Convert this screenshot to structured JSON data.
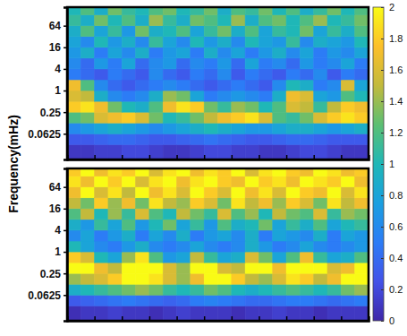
{
  "chart_data": [
    {
      "type": "heatmap",
      "ylabel": "Frequency(mHz)",
      "log": "y",
      "tick_labels": "y",
      "xlim": [
        0,
        11
      ],
      "xticks": [
        1,
        2,
        3,
        4,
        5,
        6,
        7,
        8,
        9,
        10
      ],
      "ylim": [
        0.012,
        210
      ],
      "yticks": [
        0.0625,
        0.25,
        1,
        4,
        16,
        64
      ],
      "x_edges": [
        0,
        0.5,
        1,
        1.5,
        2,
        2.5,
        3,
        3.5,
        4,
        4.5,
        5,
        5.5,
        6,
        6.5,
        7,
        7.5,
        8,
        8.5,
        9,
        9.5,
        10,
        10.5,
        11
      ],
      "y_edges": [
        0.012,
        0.03125,
        0.0625,
        0.125,
        0.25,
        0.5,
        1,
        2,
        4,
        8,
        16,
        32,
        64,
        128,
        210
      ],
      "z": [
        [
          0.1,
          0.1,
          0.15,
          0.15,
          0.2,
          0.2,
          0.15,
          0.1,
          0.1,
          0.15,
          0.2,
          0.2,
          0.15,
          0.15,
          0.1,
          0.1,
          0.15,
          0.2,
          0.2,
          0.15,
          0.1,
          0.1
        ],
        [
          0.3,
          0.3,
          0.35,
          0.4,
          0.4,
          0.35,
          0.3,
          0.3,
          0.35,
          0.4,
          0.45,
          0.4,
          0.35,
          0.3,
          0.3,
          0.35,
          0.4,
          0.4,
          0.35,
          0.3,
          0.3,
          0.3
        ],
        [
          0.6,
          0.7,
          0.8,
          0.9,
          0.8,
          0.7,
          0.6,
          0.7,
          0.8,
          0.9,
          1.0,
          0.9,
          0.8,
          0.7,
          0.7,
          0.8,
          0.9,
          0.9,
          0.8,
          0.7,
          0.8,
          0.9
        ],
        [
          1.2,
          1.3,
          1.6,
          1.7,
          1.8,
          1.6,
          1.3,
          1.0,
          1.1,
          1.3,
          1.5,
          1.7,
          1.8,
          1.9,
          1.6,
          1.2,
          1.1,
          1.3,
          1.6,
          1.8,
          1.9,
          1.8
        ],
        [
          1.8,
          1.9,
          1.7,
          1.3,
          1.0,
          0.9,
          1.2,
          1.7,
          1.9,
          1.8,
          1.3,
          1.1,
          1.4,
          1.3,
          1.0,
          1.2,
          1.6,
          1.5,
          1.1,
          1.5,
          1.8,
          1.7
        ],
        [
          1.6,
          1.5,
          0.9,
          0.6,
          0.5,
          0.6,
          0.9,
          1.4,
          1.3,
          0.8,
          0.5,
          0.6,
          0.7,
          0.6,
          0.5,
          0.9,
          1.7,
          1.6,
          0.8,
          0.7,
          1.2,
          1.0
        ],
        [
          1.7,
          1.2,
          0.6,
          0.4,
          0.3,
          0.4,
          0.5,
          0.6,
          0.5,
          0.4,
          0.3,
          0.4,
          0.5,
          0.4,
          0.3,
          0.6,
          1.0,
          0.9,
          0.5,
          0.6,
          1.6,
          0.8
        ],
        [
          0.5,
          0.4,
          0.3,
          0.5,
          0.4,
          0.3,
          0.6,
          0.4,
          0.3,
          0.5,
          0.4,
          0.6,
          0.3,
          0.5,
          0.4,
          0.3,
          0.5,
          0.4,
          0.6,
          0.3,
          0.5,
          0.4
        ],
        [
          0.6,
          0.4,
          0.7,
          0.5,
          0.8,
          0.4,
          0.6,
          0.7,
          0.4,
          0.6,
          0.5,
          0.7,
          0.4,
          0.8,
          0.5,
          0.6,
          0.4,
          0.7,
          0.5,
          0.6,
          0.8,
          0.5
        ],
        [
          0.7,
          0.9,
          0.5,
          0.8,
          0.6,
          0.9,
          0.5,
          0.7,
          0.8,
          0.5,
          0.9,
          0.6,
          0.8,
          0.5,
          0.7,
          0.9,
          0.6,
          0.8,
          0.5,
          0.7,
          0.6,
          0.8
        ],
        [
          0.8,
          0.6,
          1.0,
          0.7,
          0.9,
          0.6,
          1.1,
          0.8,
          0.6,
          1.0,
          0.7,
          0.9,
          0.6,
          1.0,
          0.8,
          0.7,
          1.1,
          0.6,
          0.9,
          0.8,
          0.7,
          1.0
        ],
        [
          0.9,
          1.2,
          0.8,
          1.1,
          0.7,
          1.3,
          0.9,
          1.0,
          1.2,
          0.8,
          1.1,
          1.3,
          0.9,
          1.2,
          0.8,
          1.1,
          1.0,
          1.3,
          0.8,
          1.1,
          0.9,
          1.2
        ],
        [
          1.1,
          0.9,
          1.3,
          1.0,
          1.2,
          0.9,
          1.4,
          1.1,
          0.9,
          1.3,
          1.2,
          1.0,
          1.4,
          0.9,
          1.2,
          1.3,
          1.0,
          1.2,
          1.4,
          1.0,
          1.1,
          1.3
        ],
        [
          1.0,
          1.2,
          0.9,
          1.3,
          1.1,
          1.0,
          1.2,
          1.3,
          1.0,
          1.1,
          1.3,
          0.9,
          1.2,
          1.1,
          1.3,
          1.0,
          1.2,
          0.9,
          1.1,
          1.3,
          1.0,
          1.2
        ]
      ],
      "colorbar": {
        "lim": [
          0,
          2
        ],
        "ticks": [
          0,
          0.2,
          0.4,
          0.6,
          0.8,
          1,
          1.2,
          1.4,
          1.6,
          1.8,
          2
        ]
      }
    },
    {
      "type": "heatmap",
      "log": "y",
      "tick_labels": "y",
      "xlim": [
        0,
        11
      ],
      "xticks": [
        1,
        2,
        3,
        4,
        5,
        6,
        7,
        8,
        9,
        10
      ],
      "ylim": [
        0.012,
        210
      ],
      "yticks": [
        0.0625,
        0.25,
        1,
        4,
        16,
        64
      ],
      "x_edges": [
        0,
        0.5,
        1,
        1.5,
        2,
        2.5,
        3,
        3.5,
        4,
        4.5,
        5,
        5.5,
        6,
        6.5,
        7,
        7.5,
        8,
        8.5,
        9,
        9.5,
        10,
        10.5,
        11
      ],
      "y_edges": [
        0.012,
        0.03125,
        0.0625,
        0.125,
        0.25,
        0.5,
        1,
        2,
        4,
        8,
        16,
        32,
        64,
        128,
        210
      ],
      "z": [
        [
          0.05,
          0.1,
          0.1,
          0.15,
          0.1,
          0.1,
          0.05,
          0.1,
          0.15,
          0.1,
          0.1,
          0.1,
          0.05,
          0.1,
          0.1,
          0.15,
          0.1,
          0.1,
          0.05,
          0.1,
          0.1,
          0.1
        ],
        [
          0.3,
          0.35,
          0.4,
          0.45,
          0.5,
          0.45,
          0.4,
          0.35,
          0.4,
          0.5,
          0.55,
          0.5,
          0.45,
          0.4,
          0.4,
          0.45,
          0.5,
          0.5,
          0.45,
          0.4,
          0.45,
          0.5
        ],
        [
          0.9,
          1.0,
          1.1,
          1.2,
          1.3,
          1.4,
          1.3,
          1.1,
          1.0,
          1.1,
          1.3,
          1.2,
          1.0,
          0.9,
          1.0,
          1.1,
          1.2,
          1.1,
          1.0,
          1.1,
          1.3,
          1.4
        ],
        [
          1.4,
          1.5,
          1.6,
          1.8,
          2.0,
          2.0,
          1.9,
          1.6,
          1.4,
          1.7,
          2.0,
          2.0,
          1.8,
          1.5,
          1.4,
          1.6,
          1.9,
          1.8,
          1.5,
          1.7,
          2.0,
          2.0
        ],
        [
          2.0,
          2.0,
          1.7,
          1.5,
          2.0,
          2.0,
          2.0,
          1.6,
          1.4,
          2.0,
          2.0,
          1.6,
          1.5,
          2.0,
          2.0,
          1.7,
          2.0,
          2.0,
          2.0,
          1.6,
          1.7,
          2.0
        ],
        [
          1.8,
          1.6,
          1.0,
          0.8,
          1.4,
          1.9,
          1.2,
          0.7,
          0.8,
          1.5,
          1.1,
          0.8,
          0.9,
          1.6,
          1.3,
          0.8,
          1.2,
          1.7,
          1.1,
          0.8,
          0.9,
          1.2
        ],
        [
          1.0,
          0.8,
          0.6,
          0.5,
          0.7,
          0.9,
          0.6,
          0.5,
          0.6,
          0.8,
          0.6,
          0.5,
          0.6,
          0.9,
          0.7,
          0.5,
          0.6,
          0.8,
          0.6,
          0.5,
          0.6,
          0.7
        ],
        [
          0.6,
          0.8,
          0.5,
          0.7,
          0.9,
          0.5,
          0.8,
          0.6,
          0.9,
          0.5,
          0.7,
          0.8,
          0.6,
          0.9,
          0.5,
          0.8,
          0.7,
          0.6,
          0.9,
          0.5,
          0.8,
          0.7
        ],
        [
          0.9,
          0.7,
          1.1,
          0.8,
          1.2,
          0.7,
          1.0,
          1.3,
          0.8,
          1.1,
          0.7,
          1.2,
          0.9,
          1.0,
          1.3,
          0.8,
          1.1,
          0.9,
          1.2,
          0.8,
          1.0,
          1.1
        ],
        [
          1.2,
          1.5,
          1.0,
          1.4,
          1.1,
          1.6,
          1.2,
          1.0,
          1.5,
          1.3,
          1.1,
          1.6,
          1.2,
          1.4,
          1.0,
          1.5,
          1.3,
          1.2,
          1.6,
          1.1,
          1.4,
          1.3
        ],
        [
          1.5,
          1.3,
          1.8,
          1.4,
          1.7,
          1.3,
          1.9,
          1.5,
          1.4,
          1.8,
          1.6,
          1.3,
          1.9,
          1.5,
          1.7,
          1.4,
          1.8,
          1.6,
          1.3,
          1.9,
          1.5,
          1.7
        ],
        [
          1.7,
          2.0,
          1.6,
          1.9,
          1.5,
          2.0,
          1.7,
          1.9,
          1.6,
          2.0,
          1.8,
          1.6,
          2.0,
          1.7,
          1.9,
          1.6,
          2.0,
          1.8,
          1.7,
          2.0,
          1.6,
          1.9
        ],
        [
          1.9,
          1.7,
          2.0,
          1.8,
          2.0,
          1.6,
          1.9,
          2.0,
          1.7,
          1.9,
          2.0,
          1.8,
          1.7,
          2.0,
          1.8,
          1.9,
          1.7,
          2.0,
          1.9,
          1.8,
          2.0,
          1.7
        ],
        [
          1.8,
          2.0,
          1.7,
          1.9,
          1.8,
          2.0,
          1.6,
          1.9,
          2.0,
          1.7,
          1.9,
          1.8,
          2.0,
          1.6,
          1.9,
          2.0,
          1.8,
          1.7,
          2.0,
          1.9,
          1.7,
          1.8
        ]
      ]
    }
  ]
}
